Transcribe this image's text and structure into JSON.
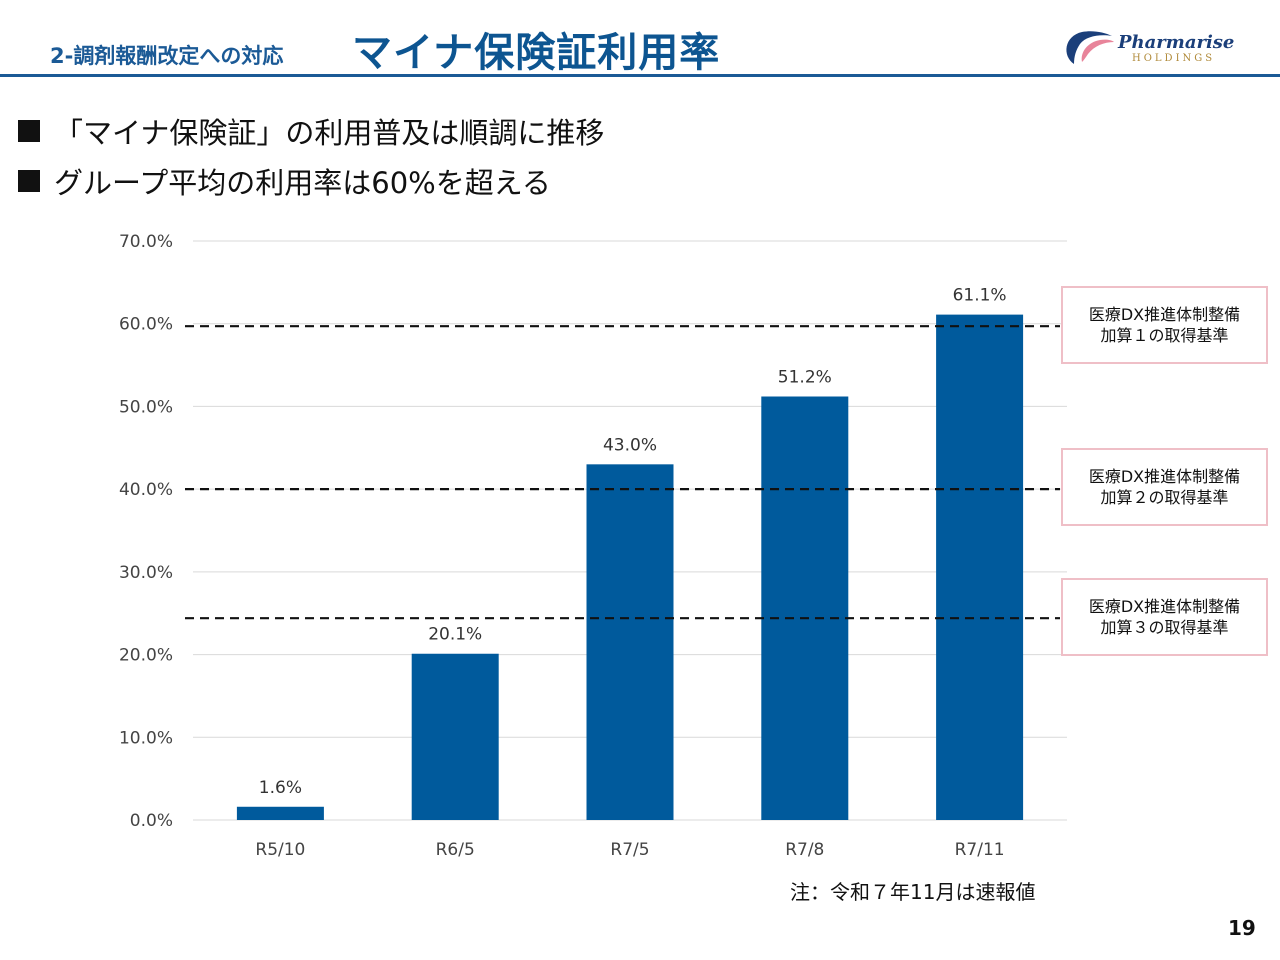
{
  "header": {
    "section_label": "2-調剤報酬改定への対応",
    "title": "マイナ保険証利用率",
    "logo_name": "Pharmarise",
    "logo_sub": "HOLDINGS"
  },
  "bullets": [
    "「マイナ保険証」の利用普及は順調に推移",
    "グループ平均の利用率は60%を超える"
  ],
  "chart_data": {
    "type": "bar",
    "title": "",
    "xlabel": "",
    "ylabel": "",
    "categories": [
      "R5/10",
      "R6/5",
      "R7/5",
      "R7/8",
      "R7/11"
    ],
    "values": [
      1.6,
      20.1,
      43.0,
      51.2,
      61.1
    ],
    "value_labels": [
      "1.6%",
      "20.1%",
      "43.0%",
      "51.2%",
      "61.1%"
    ],
    "ylim": [
      0,
      70
    ],
    "yticks": [
      0,
      10,
      20,
      30,
      40,
      50,
      60,
      70
    ],
    "ytick_labels": [
      "0.0%",
      "10.0%",
      "20.0%",
      "30.0%",
      "40.0%",
      "50.0%",
      "60.0%",
      "70.0%"
    ],
    "grid": true,
    "bar_color": "#005a9c",
    "reference_lines": [
      {
        "value": 59.7,
        "label_line1": "医療DX推進体制整備",
        "label_line2": "加算１の取得基準"
      },
      {
        "value": 40.0,
        "label_line1": "医療DX推進体制整備",
        "label_line2": "加算２の取得基準"
      },
      {
        "value": 24.4,
        "label_line1": "医療DX推進体制整備",
        "label_line2": "加算３の取得基準"
      }
    ]
  },
  "note": "注：令和７年11月は速報値",
  "page_number": "19"
}
